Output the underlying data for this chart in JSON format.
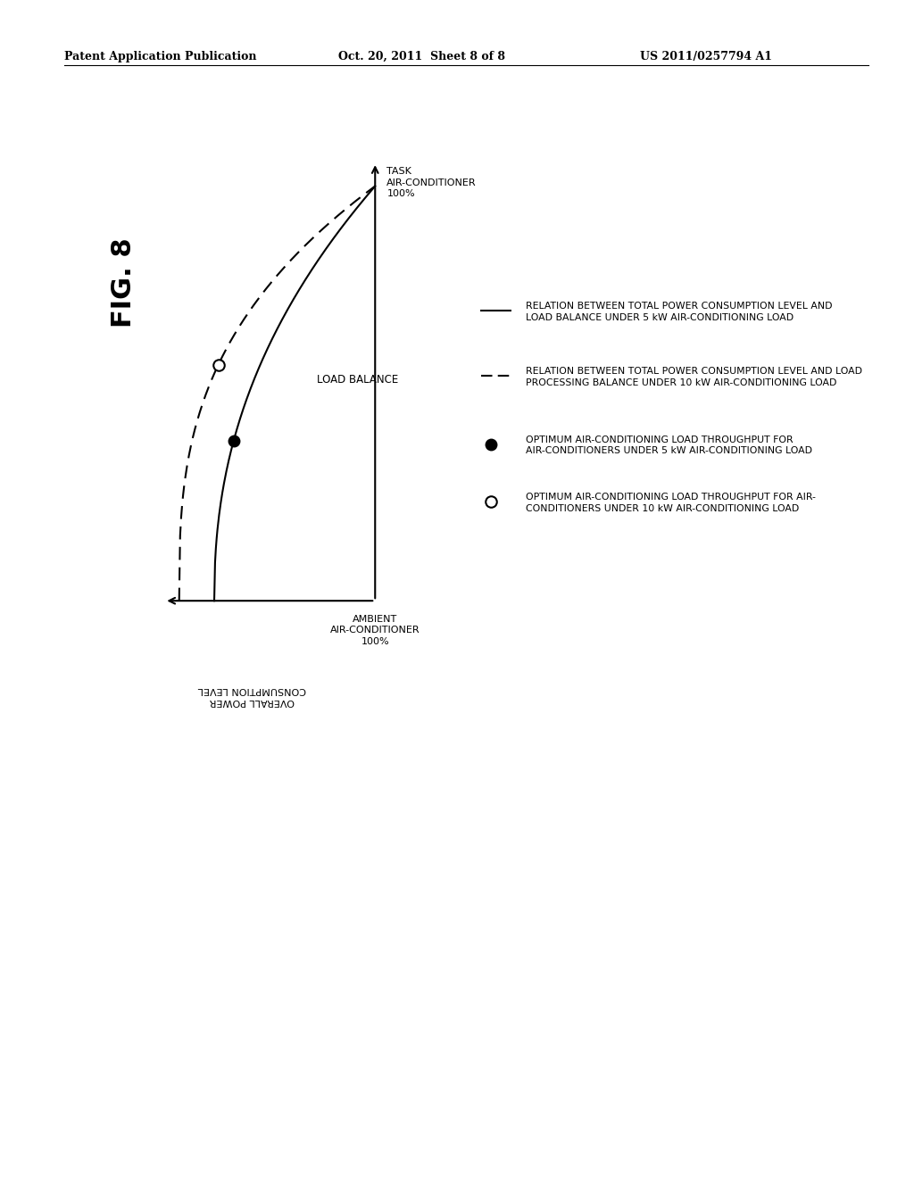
{
  "fig_label": "FIG. 8",
  "header_left": "Patent Application Publication",
  "header_center": "Oct. 20, 2011  Sheet 8 of 8",
  "header_right": "US 2011/0257794 A1",
  "label_ambient": "AMBIENT\nAIR-CONDITIONER\n100%",
  "label_task": "TASK\nAIR-CONDITIONER\n100%",
  "label_overall": "OVERALL POWER\nCONSUMPTION LEVEL",
  "label_load_balance": "LOAD BALANCE",
  "legend_line1_text": "RELATION BETWEEN TOTAL POWER CONSUMPTION LEVEL AND\nLOAD BALANCE UNDER 5 kW AIR-CONDITIONING LOAD",
  "legend_line2_text": "RELATION BETWEEN TOTAL POWER CONSUMPTION LEVEL AND LOAD\nPROCESSING BALANCE UNDER 10 kW AIR-CONDITIONING LOAD",
  "legend_dot1_text": "OPTIMUM AIR-CONDITIONING LOAD THROUGHPUT FOR\nAIR-CONDITIONERS UNDER 5 kW AIR-CONDITIONING LOAD",
  "legend_dot2_text": "OPTIMUM AIR-CONDITIONING LOAD THROUGHPUT FOR AIR-\nCONDITIONERS UNDER 10 kW AIR-CONDITIONING LOAD",
  "bg_color": "#ffffff",
  "line_color": "#000000",
  "header_fontsize": 9,
  "fig_label_fontsize": 22,
  "axis_label_fontsize": 8,
  "legend_fontsize": 7.8
}
